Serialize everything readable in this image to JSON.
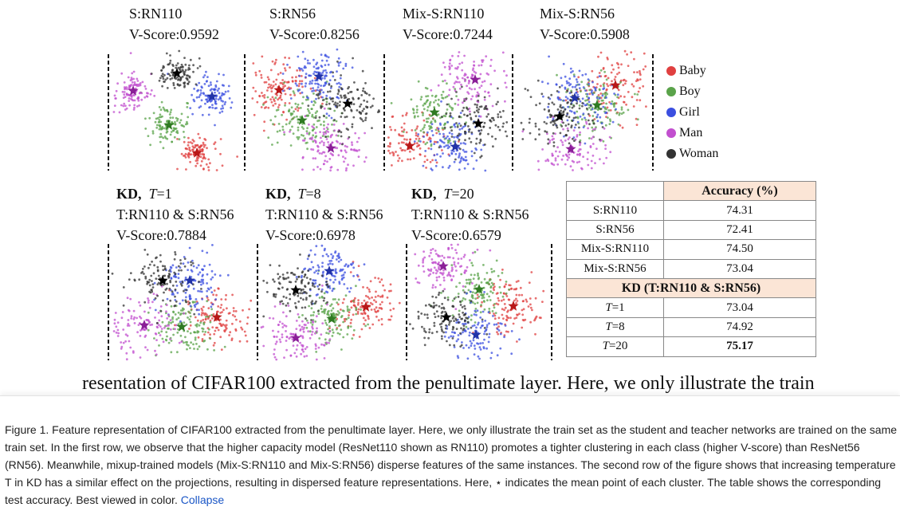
{
  "row1_panels": [
    {
      "name": "S:RN110",
      "score": "V-Score:0.9592"
    },
    {
      "name": "S:RN56",
      "score": "V-Score:0.8256"
    },
    {
      "name": "Mix-S:RN110",
      "score": "V-Score:0.7244"
    },
    {
      "name": "Mix-S:RN56",
      "score": "V-Score:0.5908"
    }
  ],
  "row2_panels": [
    {
      "kd": "KD,",
      "temp_symbol": "T",
      "temp_value": "=1",
      "pair": "T:RN110 & S:RN56",
      "score": "V-Score:0.7884"
    },
    {
      "kd": "KD,",
      "temp_symbol": "T",
      "temp_value": "=8",
      "pair": "T:RN110 & S:RN56",
      "score": "V-Score:0.6978"
    },
    {
      "kd": "KD,",
      "temp_symbol": "T",
      "temp_value": "=20",
      "pair": "T:RN110 & S:RN56",
      "score": "V-Score:0.6579"
    }
  ],
  "legend": [
    {
      "label": "Baby",
      "color": "#e04040"
    },
    {
      "label": "Boy",
      "color": "#5aa34a"
    },
    {
      "label": "Girl",
      "color": "#3b4fe0"
    },
    {
      "label": "Man",
      "color": "#c24fcf"
    },
    {
      "label": "Woman",
      "color": "#333333"
    }
  ],
  "table": {
    "header": "Accuracy (%)",
    "rows": [
      {
        "model": "S:RN110",
        "acc": "74.31"
      },
      {
        "model": "S:RN56",
        "acc": "72.41"
      },
      {
        "model": "Mix-S:RN110",
        "acc": "74.50"
      },
      {
        "model": "Mix-S:RN56",
        "acc": "73.04"
      }
    ],
    "section_label": "KD (T:RN110 & S:RN56)",
    "kd_rows": [
      {
        "temp": "=1",
        "acc": "73.04"
      },
      {
        "temp": "=8",
        "acc": "74.92"
      },
      {
        "temp": "=20",
        "acc": "75.17"
      }
    ],
    "temp_symbol": "T"
  },
  "cutoff_text": "resentation of CIFAR100 extracted from the penultimate layer. Here, we only illustrate the train",
  "caption": {
    "text": "Figure 1. Feature representation of CIFAR100 extracted from the penultimate layer. Here, we only illustrate the train set as the student and teacher networks are trained on the same train set. In the first row, we observe that the higher capacity model (ResNet110 shown as RN110) promotes a tighter clustering in each class (higher V-score) than ResNet56 (RN56). Meanwhile, mixup-trained models (Mix-S:RN110 and Mix-S:RN56) disperse features of the same instances. The second row of the figure shows that increasing temperature T in KD has a similar effect on the projections, resulting in dispersed feature representations. Here, ⋆ indicates the mean point of each cluster. The table shows the corresponding test accuracy. Best viewed in color.",
    "collapse_label": "Collapse"
  }
}
